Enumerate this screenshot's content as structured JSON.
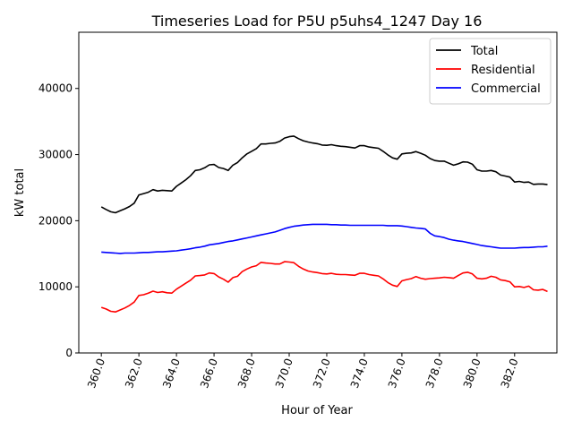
{
  "chart_data": {
    "type": "line",
    "title": "Timeseries Load for P5U p5uhs4_1247  Day 16",
    "xlabel": "Hour of Year",
    "ylabel": "kW total",
    "xlim": [
      358.8,
      384.25
    ],
    "ylim": [
      0,
      48500
    ],
    "xticks": [
      360.0,
      362.0,
      364.0,
      366.0,
      368.0,
      370.0,
      372.0,
      374.0,
      376.0,
      378.0,
      380.0,
      382.0
    ],
    "xtick_labels": [
      "360.0",
      "362.0",
      "364.0",
      "366.0",
      "368.0",
      "370.0",
      "372.0",
      "374.0",
      "376.0",
      "378.0",
      "380.0",
      "382.0"
    ],
    "yticks": [
      0,
      10000,
      20000,
      30000,
      40000
    ],
    "ytick_labels": [
      "0",
      "10000",
      "20000",
      "30000",
      "40000"
    ],
    "grid": false,
    "legend_position": "top-right",
    "series": [
      {
        "name": "Total",
        "color": "#000000",
        "points": [
          [
            360.0,
            22100
          ],
          [
            360.25,
            21700
          ],
          [
            360.5,
            21350
          ],
          [
            360.75,
            21200
          ],
          [
            361.0,
            21500
          ],
          [
            361.25,
            21800
          ],
          [
            361.5,
            22150
          ],
          [
            361.75,
            22650
          ],
          [
            362.0,
            23900
          ],
          [
            362.25,
            24100
          ],
          [
            362.5,
            24300
          ],
          [
            362.75,
            24700
          ],
          [
            363.0,
            24500
          ],
          [
            363.25,
            24600
          ],
          [
            363.5,
            24550
          ],
          [
            363.75,
            24500
          ],
          [
            364.0,
            25200
          ],
          [
            364.25,
            25700
          ],
          [
            364.5,
            26200
          ],
          [
            364.75,
            26800
          ],
          [
            365.0,
            27600
          ],
          [
            365.25,
            27700
          ],
          [
            365.5,
            28000
          ],
          [
            365.75,
            28450
          ],
          [
            366.0,
            28500
          ],
          [
            366.25,
            28050
          ],
          [
            366.5,
            27900
          ],
          [
            366.75,
            27600
          ],
          [
            367.0,
            28400
          ],
          [
            367.25,
            28800
          ],
          [
            367.5,
            29500
          ],
          [
            367.75,
            30100
          ],
          [
            368.0,
            30500
          ],
          [
            368.25,
            30900
          ],
          [
            368.5,
            31600
          ],
          [
            368.75,
            31600
          ],
          [
            369.0,
            31700
          ],
          [
            369.25,
            31750
          ],
          [
            369.5,
            32000
          ],
          [
            369.75,
            32500
          ],
          [
            370.0,
            32700
          ],
          [
            370.25,
            32800
          ],
          [
            370.5,
            32400
          ],
          [
            370.75,
            32100
          ],
          [
            371.0,
            31900
          ],
          [
            371.25,
            31750
          ],
          [
            371.5,
            31650
          ],
          [
            371.75,
            31450
          ],
          [
            372.0,
            31400
          ],
          [
            372.25,
            31500
          ],
          [
            372.5,
            31350
          ],
          [
            372.75,
            31250
          ],
          [
            373.0,
            31200
          ],
          [
            373.25,
            31100
          ],
          [
            373.5,
            31000
          ],
          [
            373.75,
            31350
          ],
          [
            374.0,
            31350
          ],
          [
            374.25,
            31150
          ],
          [
            374.5,
            31050
          ],
          [
            374.75,
            30950
          ],
          [
            375.0,
            30500
          ],
          [
            375.25,
            29950
          ],
          [
            375.5,
            29500
          ],
          [
            375.75,
            29300
          ],
          [
            376.0,
            30100
          ],
          [
            376.25,
            30200
          ],
          [
            376.5,
            30250
          ],
          [
            376.75,
            30450
          ],
          [
            377.0,
            30200
          ],
          [
            377.25,
            29900
          ],
          [
            377.5,
            29400
          ],
          [
            377.75,
            29100
          ],
          [
            378.0,
            29000
          ],
          [
            378.25,
            29000
          ],
          [
            378.5,
            28700
          ],
          [
            378.75,
            28400
          ],
          [
            379.0,
            28600
          ],
          [
            379.25,
            28900
          ],
          [
            379.5,
            28850
          ],
          [
            379.75,
            28550
          ],
          [
            380.0,
            27700
          ],
          [
            380.25,
            27500
          ],
          [
            380.5,
            27500
          ],
          [
            380.75,
            27600
          ],
          [
            381.0,
            27400
          ],
          [
            381.25,
            26900
          ],
          [
            381.5,
            26750
          ],
          [
            381.75,
            26600
          ],
          [
            382.0,
            25850
          ],
          [
            382.25,
            25950
          ],
          [
            382.5,
            25800
          ],
          [
            382.75,
            25850
          ],
          [
            383.0,
            25500
          ],
          [
            383.25,
            25550
          ],
          [
            383.5,
            25550
          ],
          [
            383.75,
            25450
          ]
        ]
      },
      {
        "name": "Residential",
        "color": "#ff0000",
        "points": [
          [
            360.0,
            6900
          ],
          [
            360.25,
            6650
          ],
          [
            360.5,
            6300
          ],
          [
            360.75,
            6200
          ],
          [
            361.0,
            6500
          ],
          [
            361.25,
            6800
          ],
          [
            361.5,
            7200
          ],
          [
            361.75,
            7700
          ],
          [
            362.0,
            8700
          ],
          [
            362.25,
            8800
          ],
          [
            362.5,
            9050
          ],
          [
            362.75,
            9350
          ],
          [
            363.0,
            9150
          ],
          [
            363.25,
            9250
          ],
          [
            363.5,
            9100
          ],
          [
            363.75,
            9050
          ],
          [
            364.0,
            9650
          ],
          [
            364.25,
            10100
          ],
          [
            364.5,
            10550
          ],
          [
            364.75,
            11000
          ],
          [
            365.0,
            11650
          ],
          [
            365.25,
            11700
          ],
          [
            365.5,
            11800
          ],
          [
            365.75,
            12100
          ],
          [
            366.0,
            12000
          ],
          [
            366.25,
            11500
          ],
          [
            366.5,
            11150
          ],
          [
            366.75,
            10700
          ],
          [
            367.0,
            11400
          ],
          [
            367.25,
            11600
          ],
          [
            367.5,
            12300
          ],
          [
            367.75,
            12700
          ],
          [
            368.0,
            13000
          ],
          [
            368.25,
            13200
          ],
          [
            368.5,
            13700
          ],
          [
            368.75,
            13600
          ],
          [
            369.0,
            13550
          ],
          [
            369.25,
            13450
          ],
          [
            369.5,
            13450
          ],
          [
            369.75,
            13800
          ],
          [
            370.0,
            13750
          ],
          [
            370.25,
            13650
          ],
          [
            370.5,
            13100
          ],
          [
            370.75,
            12700
          ],
          [
            371.0,
            12400
          ],
          [
            371.25,
            12250
          ],
          [
            371.5,
            12150
          ],
          [
            371.75,
            12000
          ],
          [
            372.0,
            11950
          ],
          [
            372.25,
            12050
          ],
          [
            372.5,
            11900
          ],
          [
            372.75,
            11850
          ],
          [
            373.0,
            11850
          ],
          [
            373.25,
            11800
          ],
          [
            373.5,
            11750
          ],
          [
            373.75,
            12050
          ],
          [
            374.0,
            12050
          ],
          [
            374.25,
            11850
          ],
          [
            374.5,
            11750
          ],
          [
            374.75,
            11650
          ],
          [
            375.0,
            11200
          ],
          [
            375.25,
            10650
          ],
          [
            375.5,
            10250
          ],
          [
            375.75,
            10050
          ],
          [
            376.0,
            10900
          ],
          [
            376.25,
            11100
          ],
          [
            376.5,
            11250
          ],
          [
            376.75,
            11550
          ],
          [
            377.0,
            11300
          ],
          [
            377.25,
            11150
          ],
          [
            377.5,
            11250
          ],
          [
            377.75,
            11300
          ],
          [
            378.0,
            11350
          ],
          [
            378.25,
            11450
          ],
          [
            378.5,
            11400
          ],
          [
            378.75,
            11300
          ],
          [
            379.0,
            11700
          ],
          [
            379.25,
            12100
          ],
          [
            379.5,
            12200
          ],
          [
            379.75,
            11950
          ],
          [
            380.0,
            11300
          ],
          [
            380.25,
            11200
          ],
          [
            380.5,
            11300
          ],
          [
            380.75,
            11600
          ],
          [
            381.0,
            11450
          ],
          [
            381.25,
            11050
          ],
          [
            381.5,
            10950
          ],
          [
            381.75,
            10750
          ],
          [
            382.0,
            10000
          ],
          [
            382.25,
            10050
          ],
          [
            382.5,
            9900
          ],
          [
            382.75,
            10100
          ],
          [
            383.0,
            9550
          ],
          [
            383.25,
            9500
          ],
          [
            383.5,
            9600
          ],
          [
            383.75,
            9300
          ]
        ]
      },
      {
        "name": "Commercial",
        "color": "#0000ff",
        "points": [
          [
            360.0,
            15250
          ],
          [
            360.25,
            15200
          ],
          [
            360.5,
            15150
          ],
          [
            360.75,
            15100
          ],
          [
            361.0,
            15050
          ],
          [
            361.25,
            15100
          ],
          [
            361.5,
            15100
          ],
          [
            361.75,
            15100
          ],
          [
            362.0,
            15150
          ],
          [
            362.25,
            15200
          ],
          [
            362.5,
            15200
          ],
          [
            362.75,
            15250
          ],
          [
            363.0,
            15300
          ],
          [
            363.25,
            15300
          ],
          [
            363.5,
            15350
          ],
          [
            363.75,
            15400
          ],
          [
            364.0,
            15450
          ],
          [
            364.25,
            15550
          ],
          [
            364.5,
            15650
          ],
          [
            364.75,
            15750
          ],
          [
            365.0,
            15900
          ],
          [
            365.25,
            16000
          ],
          [
            365.5,
            16150
          ],
          [
            365.75,
            16350
          ],
          [
            366.0,
            16450
          ],
          [
            366.25,
            16550
          ],
          [
            366.5,
            16700
          ],
          [
            366.75,
            16850
          ],
          [
            367.0,
            16950
          ],
          [
            367.25,
            17100
          ],
          [
            367.5,
            17250
          ],
          [
            367.75,
            17400
          ],
          [
            368.0,
            17550
          ],
          [
            368.25,
            17700
          ],
          [
            368.5,
            17850
          ],
          [
            368.75,
            18000
          ],
          [
            369.0,
            18150
          ],
          [
            369.25,
            18300
          ],
          [
            369.5,
            18550
          ],
          [
            369.75,
            18800
          ],
          [
            370.0,
            19000
          ],
          [
            370.25,
            19150
          ],
          [
            370.5,
            19250
          ],
          [
            370.75,
            19350
          ],
          [
            371.0,
            19400
          ],
          [
            371.25,
            19450
          ],
          [
            371.5,
            19450
          ],
          [
            371.75,
            19450
          ],
          [
            372.0,
            19450
          ],
          [
            372.25,
            19400
          ],
          [
            372.5,
            19400
          ],
          [
            372.75,
            19350
          ],
          [
            373.0,
            19350
          ],
          [
            373.25,
            19300
          ],
          [
            373.5,
            19300
          ],
          [
            373.75,
            19300
          ],
          [
            374.0,
            19300
          ],
          [
            374.25,
            19300
          ],
          [
            374.5,
            19300
          ],
          [
            374.75,
            19300
          ],
          [
            375.0,
            19300
          ],
          [
            375.25,
            19250
          ],
          [
            375.5,
            19250
          ],
          [
            375.75,
            19250
          ],
          [
            376.0,
            19200
          ],
          [
            376.25,
            19100
          ],
          [
            376.5,
            19000
          ],
          [
            376.75,
            18900
          ],
          [
            377.0,
            18850
          ],
          [
            377.25,
            18750
          ],
          [
            377.5,
            18100
          ],
          [
            377.75,
            17700
          ],
          [
            378.0,
            17600
          ],
          [
            378.25,
            17450
          ],
          [
            378.5,
            17200
          ],
          [
            378.75,
            17050
          ],
          [
            379.0,
            16950
          ],
          [
            379.25,
            16850
          ],
          [
            379.5,
            16700
          ],
          [
            379.75,
            16550
          ],
          [
            380.0,
            16400
          ],
          [
            380.25,
            16250
          ],
          [
            380.5,
            16150
          ],
          [
            380.75,
            16050
          ],
          [
            381.0,
            15950
          ],
          [
            381.25,
            15850
          ],
          [
            381.5,
            15850
          ],
          [
            381.75,
            15850
          ],
          [
            382.0,
            15850
          ],
          [
            382.25,
            15900
          ],
          [
            382.5,
            15950
          ],
          [
            382.75,
            15950
          ],
          [
            383.0,
            16000
          ],
          [
            383.25,
            16050
          ],
          [
            383.5,
            16050
          ],
          [
            383.75,
            16150
          ]
        ]
      }
    ]
  }
}
